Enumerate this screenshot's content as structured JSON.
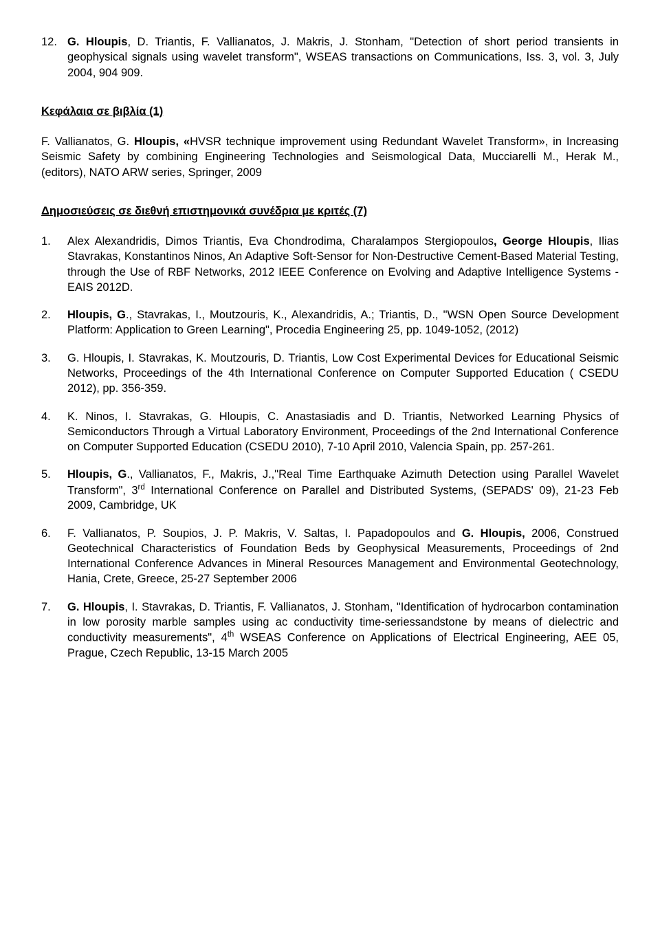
{
  "fonts": {
    "family": "Arial",
    "body_size_pt": 12,
    "heading_weight": "bold",
    "color": "#000000",
    "background": "#ffffff"
  },
  "top_item": {
    "number": "12.",
    "prefix_bold": "G. Hloupis",
    "rest": ", D. Triantis, F. Vallianatos, J. Makris, J. Stonham, \"Detection of short period transients in geophysical signals using wavelet transform\", WSEAS transactions on Communications, Iss. 3, vol. 3, July 2004, 904 909."
  },
  "section1": {
    "heading": "Κεφάλαια σε βιβλία (1)",
    "paragraph": {
      "pre": "F. Vallianatos, G. ",
      "bold": "Hloupis, «",
      "post": "HVSR technique improvement using Redundant Wavelet Transform», in Increasing Seismic Safety by combining Engineering Technologies and Seismological Data, Mucciarelli M., Herak M., (editors), NATO ARW series, Springer, 2009"
    }
  },
  "section2": {
    "heading": "Δημοσιεύσεις σε διεθνή επιστημονικά συνέδρια με κριτές (7)",
    "items": [
      {
        "number": "1.",
        "segments": [
          {
            "t": "Alex Alexandridis, Dimos Triantis, Eva Chondrodima, Charalampos Stergiopoulos",
            "b": false
          },
          {
            "t": ", ",
            "b": true
          },
          {
            "t": "George Hloupis",
            "b": true
          },
          {
            "t": ", Ilias Stavrakas, Konstantinos Ninos, An Adaptive Soft-Sensor for Non-Destructive Cement-Based Material Testing, through the Use of RBF Networks, 2012 IEEE Conference on Evolving and Adaptive Intelligence Systems - EAIS 2012D.",
            "b": false
          }
        ]
      },
      {
        "number": "2.",
        "segments": [
          {
            "t": "Hloupis, G",
            "b": true
          },
          {
            "t": "., Stavrakas, I., Moutzouris, K., Alexandridis, A.; Triantis, D., \"WSN Open Source Development Platform: Application to Green Learning\", Procedia Engineering 25, pp. 1049-1052, (2012)",
            "b": false
          }
        ]
      },
      {
        "number": "3.",
        "segments": [
          {
            "t": "G. Hloupis, I. Stavrakas, K. Moutzouris, D. Triantis, Low Cost Experimental Devices for Educational Seismic Networks, Proceedings of the 4th International Conference on Computer Supported Education ( CSEDU 2012), pp. 356-359.",
            "b": false
          }
        ]
      },
      {
        "number": "4.",
        "segments": [
          {
            "t": "K. Ninos, I. Stavrakas, G. Hloupis, C. Anastasiadis and D. Triantis, Networked Learning Physics of Semiconductors Through a Virtual Laboratory Environment, Proceedings of the 2nd International Conference on Computer Supported Education (CSEDU 2010), 7-10 April 2010, Valencia Spain, pp. 257-261.",
            "b": false
          }
        ]
      },
      {
        "number": "5.",
        "segments": [
          {
            "t": " Hloupis, G",
            "b": true
          },
          {
            "t": "., Vallianatos, F., Makris, J.,\"Real Time Earthquake Azimuth Detection using Parallel Wavelet Transform\", 3",
            "b": false
          },
          {
            "t": "rd",
            "sup": true
          },
          {
            "t": " International Conference on Parallel and Distributed Systems, (SEPADS' 09), 21-23 Feb 2009, Cambridge, UK",
            "b": false
          }
        ]
      },
      {
        "number": "6.",
        "segments": [
          {
            "t": " F. Vallianatos, P. Soupios, J. P. Makris, V. Saltas, I. Papadopoulos and ",
            "b": false
          },
          {
            "t": "G. Hloupis,",
            "b": true
          },
          {
            "t": " 2006, Construed Geotechnical Characteristics of Foundation Beds by Geophysical Measurements, Proceedings of 2nd International Conference Advances in Mineral Resources Management and Environmental Geotechnology, Hania, Crete, Greece, 25-27 September 2006",
            "b": false
          }
        ]
      },
      {
        "number": "7.",
        "segments": [
          {
            "t": " ",
            "b": false
          },
          {
            "t": "G. Hloupis",
            "b": true
          },
          {
            "t": ", I. Stavrakas, D. Triantis, F. Vallianatos, J. Stonham, \"Identification of hydrocarbon contamination in low porosity marble samples using ac conductivity time-seriessandstone by means of dielectric and conductivity measurements\", 4",
            "b": false
          },
          {
            "t": "th",
            "sup": true
          },
          {
            "t": " WSEAS Conference on Applications of Electrical Engineering, AEE 05, Prague, Czech Republic, 13-15 March 2005",
            "b": false
          }
        ]
      }
    ]
  }
}
